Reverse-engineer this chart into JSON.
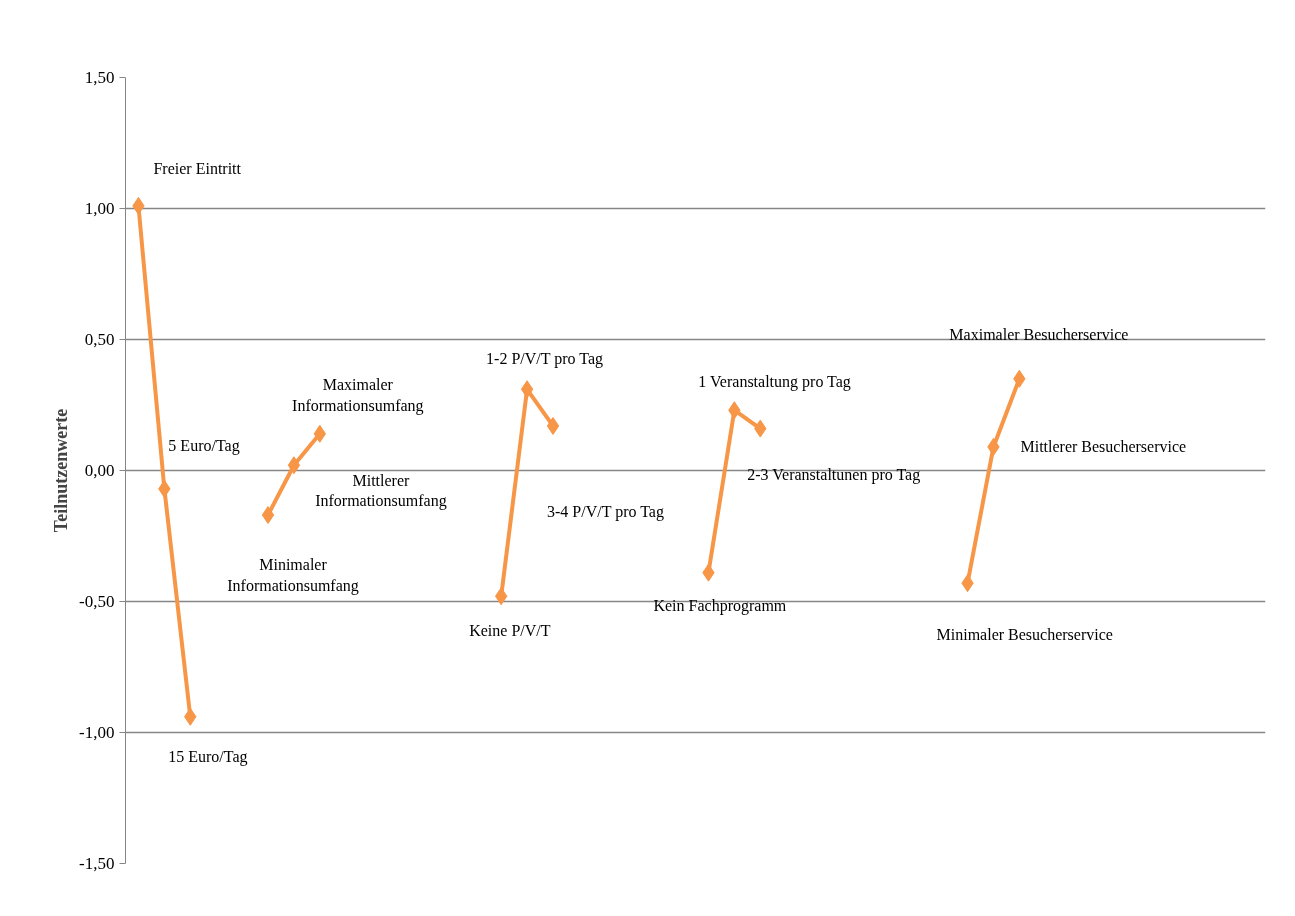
{
  "chart_data": {
    "type": "line",
    "ylabel": "Teilnutzenwerte",
    "categories": [
      null,
      null,
      null,
      null,
      null,
      null,
      null,
      null,
      null,
      null,
      null,
      null,
      null,
      null,
      null,
      null,
      null,
      null,
      null,
      null,
      null,
      null,
      null,
      null,
      null,
      null,
      null,
      null,
      null,
      null,
      null,
      null,
      null,
      null,
      null,
      null,
      null,
      null,
      null,
      null,
      null,
      null,
      null,
      null
    ],
    "series": [
      {
        "color": "#f79646",
        "values": [
          1.01,
          -0.07,
          -0.94,
          null,
          null,
          -0.17,
          0.02,
          0.14,
          null,
          null,
          null,
          null,
          null,
          null,
          -0.48,
          0.31,
          0.17,
          null,
          null,
          null,
          null,
          null,
          -0.39,
          0.23,
          0.16,
          null,
          null,
          null,
          null,
          null,
          null,
          null,
          -0.43,
          0.09,
          0.35,
          null,
          null,
          null,
          null,
          null,
          null,
          null,
          null,
          null
        ]
      }
    ],
    "annotations": [
      "Freier Eintritt",
      "5 Euro/Tag",
      "15 Euro/Tag",
      "Minimaler\nInformationsumfang",
      "Mittlerer\nInformationsumfang",
      "Maximaler\nInformationsumfang",
      "Keine P/V/T",
      "1-2 P/V/T pro Tag",
      "3-4 P/V/T pro Tag",
      "Kein Fachprogramm",
      "1 Veranstaltung  pro Tag",
      "2-3 Veranstaltunen pro Tag",
      "Minimaler Besucherservice",
      "Mittlerer Besucherservice",
      "Maximaler Besucherservice"
    ],
    "ylim": [
      -1.5,
      1.5
    ],
    "yticks": [
      {
        "value": -1.5,
        "label": "-1,50"
      },
      {
        "value": -1.0,
        "label": "-1,00"
      },
      {
        "value": -0.5,
        "label": "-0,50"
      },
      {
        "value": 0,
        "label": "0,00"
      },
      {
        "value": 0.5,
        "label": "0,50"
      },
      {
        "value": 1.0,
        "label": "1,00"
      },
      {
        "value": 1.5,
        "label": "1,50"
      }
    ],
    "grid": "y",
    "marker": "diamond",
    "line_style": "solid",
    "tick_labels": "y"
  }
}
